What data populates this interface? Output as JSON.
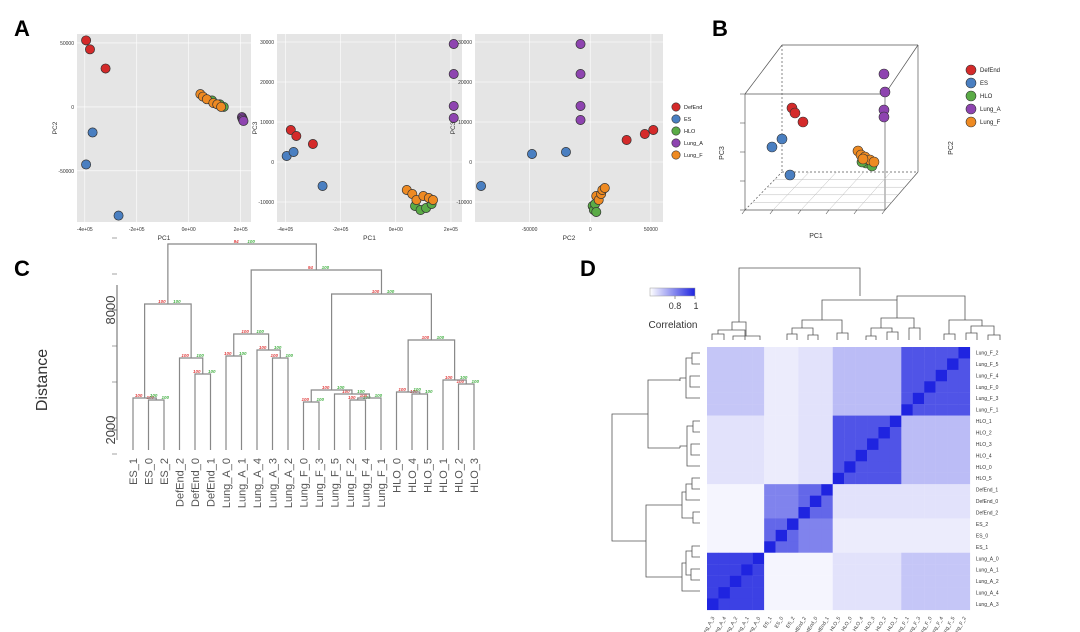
{
  "colors": {
    "DefEnd": "#d42a2a",
    "ES": "#4a7fc1",
    "HLO": "#5aab46",
    "Lung_A": "#8e44b0",
    "Lung_F": "#ee8a22",
    "panel_bg": "#e5e5e5",
    "heat_high": "#1f24e0",
    "heat_low": "#ffffff"
  },
  "panels": {
    "A": "A",
    "B": "B",
    "C": "C",
    "D": "D"
  },
  "legend": [
    "DefEnd",
    "ES",
    "HLO",
    "Lung_A",
    "Lung_F"
  ],
  "chart_data": [
    {
      "id": "pca_pc1_pc2",
      "type": "scatter",
      "xlabel": "PC1",
      "ylabel": "PC2",
      "xticks": [
        "-4e+05",
        "-2e+05",
        "0e+00",
        "2e+05"
      ],
      "yticks": [
        "50000",
        "0",
        "-50000"
      ],
      "xlim": [
        -430000,
        240000
      ],
      "ylim": [
        -90000,
        57000
      ],
      "series": [
        {
          "name": "DefEnd",
          "points": [
            [
              -395000,
              52000
            ],
            [
              -380000,
              45000
            ],
            [
              -320000,
              30000
            ]
          ]
        },
        {
          "name": "ES",
          "points": [
            [
              -370000,
              -20000
            ],
            [
              -395000,
              -45000
            ],
            [
              -270000,
              -85000
            ]
          ]
        },
        {
          "name": "HLO",
          "points": [
            [
              90000,
              5000
            ],
            [
              120000,
              2000
            ],
            [
              135000,
              0
            ]
          ]
        },
        {
          "name": "Lung_A",
          "points": [
            [
              205000,
              -8000
            ],
            [
              207000,
              -9000
            ],
            [
              209000,
              -10000
            ],
            [
              211000,
              -11000
            ]
          ]
        },
        {
          "name": "Lung_F",
          "points": [
            [
              45000,
              10000
            ],
            [
              55000,
              8000
            ],
            [
              70000,
              6000
            ],
            [
              95000,
              3000
            ],
            [
              110000,
              2000
            ],
            [
              125000,
              0
            ]
          ]
        }
      ]
    },
    {
      "id": "pca_pc1_pc3",
      "type": "scatter",
      "xlabel": "PC1",
      "ylabel": "PC3",
      "xticks": [
        "-4e+05",
        "-2e+05",
        "0e+00",
        "2e+05"
      ],
      "yticks": [
        "30000",
        "20000",
        "10000",
        "0",
        "-10000"
      ],
      "xlim": [
        -430000,
        240000
      ],
      "ylim": [
        -15000,
        32000
      ],
      "series": [
        {
          "name": "DefEnd",
          "points": [
            [
              -380000,
              8000
            ],
            [
              -360000,
              6500
            ],
            [
              -300000,
              4500
            ]
          ]
        },
        {
          "name": "ES",
          "points": [
            [
              -395000,
              1500
            ],
            [
              -370000,
              2500
            ],
            [
              -265000,
              -6000
            ]
          ]
        },
        {
          "name": "HLO",
          "points": [
            [
              70000,
              -11000
            ],
            [
              90000,
              -12000
            ],
            [
              110000,
              -11500
            ],
            [
              130000,
              -10500
            ]
          ]
        },
        {
          "name": "Lung_A",
          "points": [
            [
              210000,
              29500
            ],
            [
              210000,
              22000
            ],
            [
              210000,
              14000
            ],
            [
              210000,
              11000
            ]
          ]
        },
        {
          "name": "Lung_F",
          "points": [
            [
              40000,
              -7000
            ],
            [
              60000,
              -8000
            ],
            [
              75000,
              -9500
            ],
            [
              100000,
              -8500
            ],
            [
              120000,
              -9000
            ],
            [
              135000,
              -9500
            ]
          ]
        }
      ]
    },
    {
      "id": "pca_pc2_pc3",
      "type": "scatter",
      "xlabel": "PC2",
      "ylabel": "PC3",
      "xticks": [
        "-50000",
        "0",
        "50000"
      ],
      "yticks": [
        "30000",
        "20000",
        "10000",
        "0",
        "-10000"
      ],
      "xlim": [
        -95000,
        60000
      ],
      "ylim": [
        -15000,
        32000
      ],
      "series": [
        {
          "name": "DefEnd",
          "points": [
            [
              30000,
              5500
            ],
            [
              45000,
              7000
            ],
            [
              52000,
              8000
            ]
          ]
        },
        {
          "name": "ES",
          "points": [
            [
              -90000,
              -6000
            ],
            [
              -48000,
              2000
            ],
            [
              -20000,
              2500
            ]
          ]
        },
        {
          "name": "HLO",
          "points": [
            [
              2000,
              -11000
            ],
            [
              3000,
              -12000
            ],
            [
              4000,
              -10500
            ],
            [
              5000,
              -12500
            ]
          ]
        },
        {
          "name": "Lung_A",
          "points": [
            [
              -8000,
              29500
            ],
            [
              -8000,
              22000
            ],
            [
              -8000,
              14000
            ],
            [
              -8000,
              10500
            ]
          ]
        },
        {
          "name": "Lung_F",
          "points": [
            [
              5000,
              -8500
            ],
            [
              7000,
              -9500
            ],
            [
              9000,
              -8000
            ],
            [
              10000,
              -7000
            ],
            [
              12000,
              -6500
            ]
          ]
        }
      ]
    },
    {
      "id": "pca_3d",
      "type": "scatter",
      "xlabel": "PC1",
      "ylabel": "PC3",
      "zlabel": "PC2"
    },
    {
      "id": "dendrogram",
      "type": "dendrogram",
      "ylabel": "Distance",
      "yticks": [
        "2000",
        "8000"
      ],
      "leaves": [
        "ES_1",
        "ES_0",
        "ES_2",
        "DefEnd_2",
        "DefEnd_0",
        "DefEnd_1",
        "Lung_A_0",
        "Lung_A_1",
        "Lung_A_4",
        "Lung_A_3",
        "Lung_A_2",
        "Lung_F_0",
        "Lung_F_3",
        "Lung_F_5",
        "Lung_F_2",
        "Lung_F_4",
        "Lung_F_1",
        "HLO_0",
        "HLO_4",
        "HLO_5",
        "HLO_1",
        "HLO_2",
        "HLO_3"
      ]
    },
    {
      "id": "heatmap",
      "type": "heatmap",
      "colorbar_title": "Correlation",
      "colorbar_ticks": [
        "0.8",
        "1"
      ],
      "rows": [
        "Lung_F_2",
        "Lung_F_5",
        "Lung_F_4",
        "Lung_F_0",
        "Lung_F_3",
        "Lung_F_1",
        "HLO_1",
        "HLO_2",
        "HLO_3",
        "HLO_4",
        "HLO_0",
        "HLO_5",
        "DefEnd_1",
        "DefEnd_0",
        "DefEnd_2",
        "ES_2",
        "ES_0",
        "ES_1",
        "Lung_A_0",
        "Lung_A_1",
        "Lung_A_2",
        "Lung_A_4",
        "Lung_A_3"
      ],
      "cols": [
        "Lung_A_3",
        "Lung_A_4",
        "Lung_A_2",
        "Lung_A_1",
        "Lung_A_0",
        "ES_1",
        "ES_0",
        "ES_2",
        "DefEnd_2",
        "DefEnd_0",
        "DefEnd_1",
        "HLO_5",
        "HLO_0",
        "HLO_4",
        "HLO_3",
        "HLO_2",
        "HLO_1",
        "Lung_F_1",
        "Lung_F_3",
        "Lung_F_0",
        "Lung_F_4",
        "Lung_F_5",
        "Lung_F_2"
      ]
    }
  ]
}
